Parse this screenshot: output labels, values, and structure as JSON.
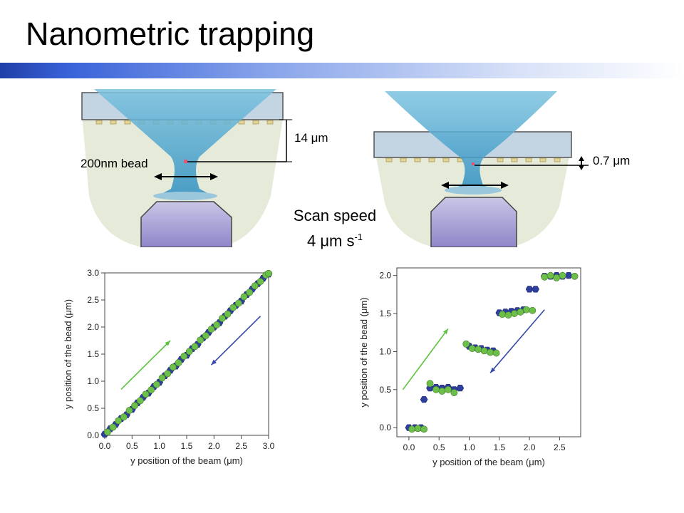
{
  "slide": {
    "title": "Nanometric trapping",
    "banner_color": "#2b4fc4"
  },
  "diagrams": {
    "left": {
      "height_label": "14 μm",
      "bead_label": "200nm bead"
    },
    "right": {
      "height_label": "0.7 μm"
    },
    "scan_line1": "Scan speed",
    "scan_line2_prefix": "4 μm s",
    "scan_line2_sup": "-1"
  },
  "colors": {
    "blue_series": "#2e3f9e",
    "green_series": "#6cc04a",
    "green_arrow": "#5cc33c",
    "blue_arrow": "#3248a8"
  },
  "chart_data": [
    {
      "type": "scatter",
      "xlabel": "y position of the beam (μm)",
      "ylabel": "y position of the bead (μm)",
      "xlim": [
        0,
        3.0
      ],
      "ylim": [
        0,
        3.0
      ],
      "xticks": [
        "0.0",
        "0.5",
        "1.0",
        "1.5",
        "2.0",
        "2.5",
        "3.0"
      ],
      "yticks": [
        "0.0",
        "0.5",
        "1.0",
        "1.5",
        "2.0",
        "2.5",
        "3.0"
      ],
      "series": [
        {
          "marker": "hexagon",
          "color": "#2e3f9e",
          "x": [
            0.0,
            0.1,
            0.2,
            0.3,
            0.4,
            0.5,
            0.6,
            0.7,
            0.8,
            0.9,
            1.0,
            1.1,
            1.2,
            1.3,
            1.4,
            1.5,
            1.6,
            1.7,
            1.8,
            1.9,
            2.0,
            2.1,
            2.2,
            2.3,
            2.4,
            2.5,
            2.6,
            2.7,
            2.8,
            2.9,
            3.0
          ],
          "y": [
            0.02,
            0.12,
            0.2,
            0.31,
            0.38,
            0.48,
            0.6,
            0.7,
            0.78,
            0.9,
            0.98,
            1.1,
            1.2,
            1.28,
            1.4,
            1.48,
            1.6,
            1.68,
            1.8,
            1.9,
            2.0,
            2.08,
            2.2,
            2.3,
            2.4,
            2.48,
            2.6,
            2.7,
            2.8,
            2.9,
            2.98
          ]
        },
        {
          "marker": "circle",
          "color": "#6cc04a",
          "x": [
            0.05,
            0.15,
            0.25,
            0.35,
            0.45,
            0.55,
            0.65,
            0.75,
            0.85,
            0.95,
            1.05,
            1.15,
            1.25,
            1.35,
            1.45,
            1.55,
            1.65,
            1.75,
            1.85,
            1.95,
            2.05,
            2.15,
            2.25,
            2.35,
            2.45,
            2.55,
            2.65,
            2.75,
            2.85,
            2.95,
            3.0
          ],
          "y": [
            0.06,
            0.15,
            0.27,
            0.34,
            0.46,
            0.55,
            0.64,
            0.76,
            0.84,
            0.94,
            1.06,
            1.14,
            1.26,
            1.34,
            1.46,
            1.55,
            1.64,
            1.76,
            1.84,
            1.96,
            2.04,
            2.16,
            2.24,
            2.36,
            2.44,
            2.56,
            2.64,
            2.76,
            2.84,
            2.96,
            2.99
          ]
        }
      ],
      "arrows": [
        {
          "color": "#5cc33c",
          "from": [
            0.3,
            0.85
          ],
          "to": [
            1.2,
            1.75
          ]
        },
        {
          "color": "#3248a8",
          "from": [
            2.85,
            2.2
          ],
          "to": [
            1.95,
            1.3
          ]
        }
      ]
    },
    {
      "type": "scatter",
      "xlabel": "y position of the beam (μm)",
      "ylabel": "y position of the bead (μm)",
      "xlim": [
        -0.2,
        2.85
      ],
      "ylim": [
        -0.12,
        2.1
      ],
      "xticks": [
        "0.0",
        "0.5",
        "1.0",
        "1.5",
        "2.0",
        "2.5"
      ],
      "yticks": [
        "0.0",
        "0.5",
        "1.0",
        "1.5",
        "2.0"
      ],
      "series": [
        {
          "marker": "hexagon",
          "color": "#2e3f9e",
          "x": [
            0.0,
            0.1,
            0.2,
            0.25,
            0.35,
            0.45,
            0.55,
            0.65,
            0.75,
            0.85,
            1.0,
            1.1,
            1.2,
            1.3,
            1.4,
            1.5,
            1.6,
            1.7,
            1.8,
            1.9,
            2.0,
            2.1,
            2.25,
            2.35,
            2.45,
            2.55,
            2.65
          ],
          "y": [
            0.0,
            0.0,
            0.0,
            0.37,
            0.52,
            0.53,
            0.52,
            0.53,
            0.5,
            0.52,
            1.07,
            1.05,
            1.04,
            1.02,
            1.01,
            1.51,
            1.52,
            1.53,
            1.54,
            1.55,
            1.82,
            1.82,
            1.99,
            1.99,
            2.0,
            1.99,
            2.0
          ]
        },
        {
          "marker": "circle",
          "color": "#6cc04a",
          "x": [
            0.05,
            0.15,
            0.25,
            0.35,
            0.45,
            0.55,
            0.65,
            0.75,
            0.95,
            1.05,
            1.15,
            1.25,
            1.35,
            1.45,
            1.55,
            1.65,
            1.75,
            1.85,
            1.95,
            2.05,
            2.25,
            2.35,
            2.45,
            2.55,
            2.75
          ],
          "y": [
            -0.02,
            -0.01,
            -0.02,
            0.58,
            0.5,
            0.48,
            0.5,
            0.46,
            1.1,
            1.04,
            1.03,
            1.01,
            0.99,
            0.98,
            1.49,
            1.48,
            1.5,
            1.52,
            1.55,
            1.54,
            1.98,
            2.0,
            1.97,
            2.0,
            1.99
          ]
        }
      ],
      "arrows": [
        {
          "color": "#5cc33c",
          "from": [
            -0.1,
            0.5
          ],
          "to": [
            0.65,
            1.3
          ]
        },
        {
          "color": "#3248a8",
          "from": [
            2.25,
            1.55
          ],
          "to": [
            1.35,
            0.72
          ]
        }
      ]
    }
  ]
}
